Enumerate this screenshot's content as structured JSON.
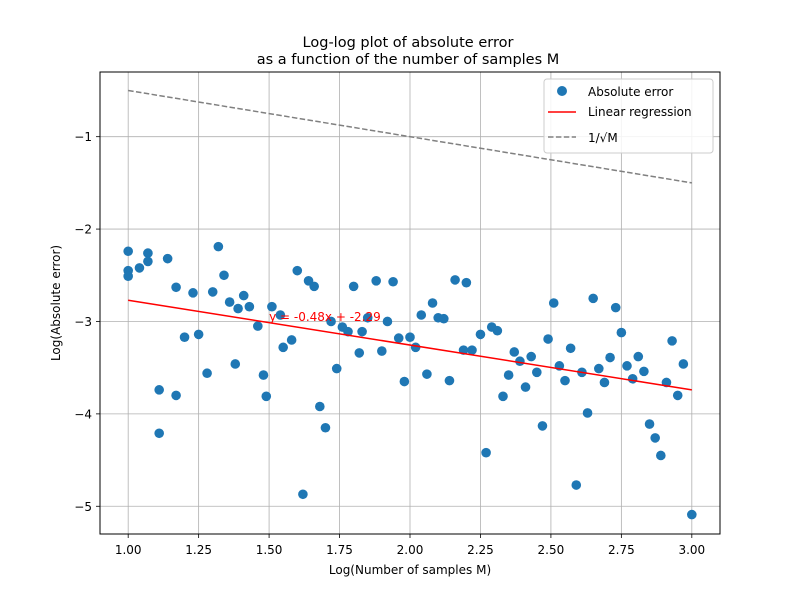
{
  "chart_data": {
    "type": "scatter",
    "title": "Log-log plot of absolute error",
    "subtitle": "as a function of the number of samples M",
    "xlabel": "Log(Number of samples M)",
    "ylabel": "Log(Absolute error)",
    "xlim": [
      0.9,
      3.1
    ],
    "ylim": [
      -5.3,
      -0.3
    ],
    "xticks": [
      "1.00",
      "1.25",
      "1.50",
      "1.75",
      "2.00",
      "2.25",
      "2.50",
      "2.75",
      "3.00"
    ],
    "xtick_values": [
      1.0,
      1.25,
      1.5,
      1.75,
      2.0,
      2.25,
      2.5,
      2.75,
      3.0
    ],
    "yticks": [
      "−5",
      "−4",
      "−3",
      "−2",
      "−1"
    ],
    "ytick_values": [
      -5,
      -4,
      -3,
      -2,
      -1
    ],
    "grid": true,
    "legend_position": "top-right",
    "annotation": {
      "text": "y = -0.48x + -2.29",
      "x": 1.5,
      "y": -2.95,
      "color": "#ff0000"
    },
    "series": [
      {
        "name": "Absolute error",
        "kind": "scatter",
        "color": "#1f77b4",
        "points": [
          [
            1.0,
            -2.24
          ],
          [
            1.0,
            -2.45
          ],
          [
            1.0,
            -2.51
          ],
          [
            1.04,
            -2.42
          ],
          [
            1.07,
            -2.26
          ],
          [
            1.07,
            -2.35
          ],
          [
            1.11,
            -3.74
          ],
          [
            1.11,
            -4.21
          ],
          [
            1.14,
            -2.32
          ],
          [
            1.17,
            -2.63
          ],
          [
            1.17,
            -3.8
          ],
          [
            1.2,
            -3.17
          ],
          [
            1.23,
            -2.69
          ],
          [
            1.25,
            -3.14
          ],
          [
            1.28,
            -3.56
          ],
          [
            1.3,
            -2.68
          ],
          [
            1.32,
            -2.19
          ],
          [
            1.34,
            -2.5
          ],
          [
            1.36,
            -2.79
          ],
          [
            1.38,
            -3.46
          ],
          [
            1.39,
            -2.86
          ],
          [
            1.41,
            -2.72
          ],
          [
            1.43,
            -2.84
          ],
          [
            1.46,
            -3.05
          ],
          [
            1.48,
            -3.58
          ],
          [
            1.49,
            -3.81
          ],
          [
            1.51,
            -2.84
          ],
          [
            1.54,
            -2.93
          ],
          [
            1.55,
            -3.28
          ],
          [
            1.58,
            -3.2
          ],
          [
            1.6,
            -2.45
          ],
          [
            1.62,
            -4.87
          ],
          [
            1.64,
            -2.56
          ],
          [
            1.66,
            -2.62
          ],
          [
            1.68,
            -3.92
          ],
          [
            1.7,
            -4.15
          ],
          [
            1.72,
            -3.0
          ],
          [
            1.74,
            -3.51
          ],
          [
            1.76,
            -3.06
          ],
          [
            1.78,
            -3.11
          ],
          [
            1.8,
            -2.62
          ],
          [
            1.82,
            -3.34
          ],
          [
            1.83,
            -3.11
          ],
          [
            1.85,
            -2.96
          ],
          [
            1.88,
            -2.56
          ],
          [
            1.9,
            -3.32
          ],
          [
            1.92,
            -3.0
          ],
          [
            1.94,
            -2.57
          ],
          [
            1.96,
            -3.18
          ],
          [
            1.98,
            -3.65
          ],
          [
            2.0,
            -3.17
          ],
          [
            2.02,
            -3.28
          ],
          [
            2.04,
            -2.93
          ],
          [
            2.06,
            -3.57
          ],
          [
            2.08,
            -2.8
          ],
          [
            2.1,
            -2.96
          ],
          [
            2.12,
            -2.97
          ],
          [
            2.14,
            -3.64
          ],
          [
            2.16,
            -2.55
          ],
          [
            2.19,
            -3.31
          ],
          [
            2.2,
            -2.58
          ],
          [
            2.22,
            -3.31
          ],
          [
            2.25,
            -3.14
          ],
          [
            2.27,
            -4.42
          ],
          [
            2.29,
            -3.06
          ],
          [
            2.31,
            -3.1
          ],
          [
            2.33,
            -3.81
          ],
          [
            2.35,
            -3.58
          ],
          [
            2.37,
            -3.33
          ],
          [
            2.39,
            -3.43
          ],
          [
            2.41,
            -3.71
          ],
          [
            2.43,
            -3.38
          ],
          [
            2.45,
            -3.55
          ],
          [
            2.47,
            -4.13
          ],
          [
            2.49,
            -3.19
          ],
          [
            2.51,
            -2.8
          ],
          [
            2.53,
            -3.48
          ],
          [
            2.55,
            -3.64
          ],
          [
            2.57,
            -3.29
          ],
          [
            2.59,
            -4.77
          ],
          [
            2.61,
            -3.55
          ],
          [
            2.63,
            -3.99
          ],
          [
            2.65,
            -2.75
          ],
          [
            2.67,
            -3.51
          ],
          [
            2.69,
            -3.66
          ],
          [
            2.71,
            -3.39
          ],
          [
            2.73,
            -2.85
          ],
          [
            2.75,
            -3.12
          ],
          [
            2.77,
            -3.48
          ],
          [
            2.79,
            -3.62
          ],
          [
            2.81,
            -3.38
          ],
          [
            2.83,
            -3.54
          ],
          [
            2.85,
            -4.11
          ],
          [
            2.87,
            -4.26
          ],
          [
            2.89,
            -4.45
          ],
          [
            2.91,
            -3.66
          ],
          [
            2.93,
            -3.21
          ],
          [
            2.95,
            -3.8
          ],
          [
            2.97,
            -3.46
          ],
          [
            3.0,
            -5.09
          ]
        ]
      },
      {
        "name": "Linear regression",
        "kind": "line",
        "color": "#ff0000",
        "dash": "solid",
        "points": [
          [
            1.0,
            -2.77
          ],
          [
            3.0,
            -3.74
          ]
        ]
      },
      {
        "name": "1/√M",
        "kind": "line",
        "color": "#808080",
        "dash": "dashed",
        "points": [
          [
            1.0,
            -0.5
          ],
          [
            3.0,
            -1.5
          ]
        ]
      }
    ]
  }
}
